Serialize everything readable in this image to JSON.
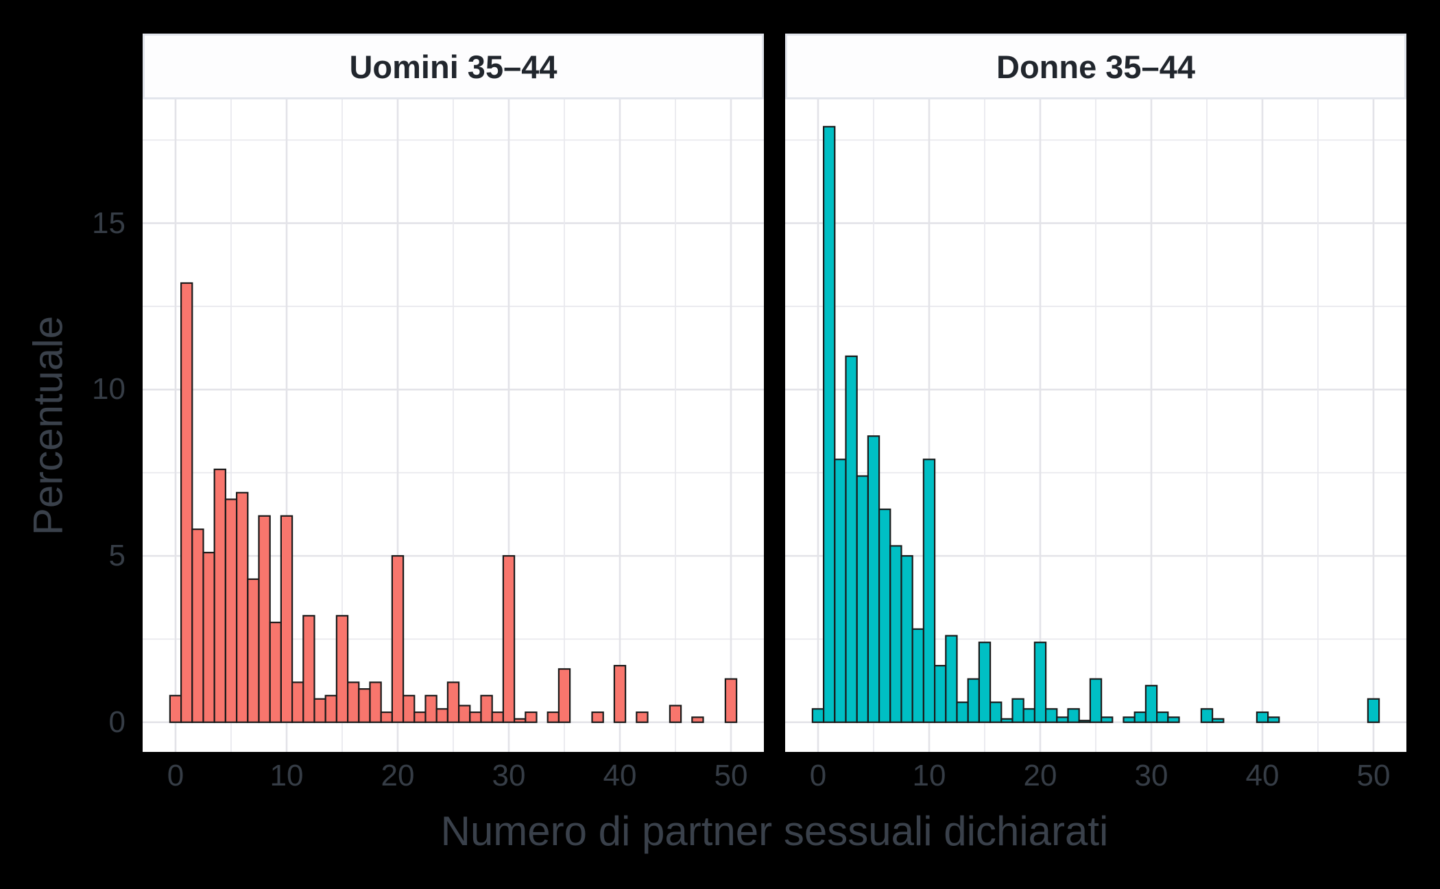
{
  "background_color": "#000000",
  "panel_background": "#FFFFFF",
  "gridline_color_major": "#E3E3E8",
  "gridline_color_minor": "#E9E9EE",
  "text_color": "#363D46",
  "x_axis": {
    "title": "Numero di partner sessuali dichiarati",
    "tick_values": [
      0,
      10,
      20,
      30,
      40,
      50
    ],
    "tick_labels": [
      "0",
      "10",
      "20",
      "30",
      "40",
      "50"
    ]
  },
  "y_axis": {
    "title": "Percentuale",
    "tick_values": [
      0,
      5,
      10,
      15
    ],
    "tick_labels": [
      "0",
      "5",
      "10",
      "15"
    ]
  },
  "chart_data": [
    {
      "type": "bar",
      "panel_title": "Uomini 35–44",
      "bar_color": "#F8766D",
      "bar_edge_color": "#1A1A1A",
      "x_start": 0,
      "binwidth": 1,
      "xlabel": "Numero di partner sessuali dichiarati",
      "ylabel": "Percentuale",
      "ylim": [
        0,
        18.8
      ],
      "xlim": [
        -3.1,
        54.1
      ],
      "values": [
        0.8,
        13.2,
        5.8,
        5.1,
        7.6,
        6.7,
        6.9,
        4.3,
        6.2,
        3.0,
        6.2,
        1.2,
        3.2,
        0.7,
        0.8,
        3.2,
        1.2,
        1.0,
        1.2,
        0.3,
        5.0,
        0.8,
        0.3,
        0.8,
        0.4,
        1.2,
        0.5,
        0.3,
        0.8,
        0.3,
        5.0,
        0.1,
        0.3,
        0,
        0.3,
        1.6,
        0,
        0,
        0.3,
        0,
        1.7,
        0,
        0.3,
        0,
        0,
        0.5,
        0,
        0.15,
        0,
        0,
        1.3,
        0
      ]
    },
    {
      "type": "bar",
      "panel_title": "Donne 35–44",
      "bar_color": "#00BFC4",
      "bar_edge_color": "#1A1A1A",
      "x_start": 0,
      "binwidth": 1,
      "xlabel": "Numero di partner sessuali dichiarati",
      "ylabel": "Percentuale",
      "ylim": [
        0,
        18.8
      ],
      "xlim": [
        -3.1,
        54.1
      ],
      "values": [
        0.4,
        17.9,
        7.9,
        11.0,
        7.4,
        8.6,
        6.4,
        5.3,
        5.0,
        2.8,
        7.9,
        1.7,
        2.6,
        0.6,
        1.3,
        2.4,
        0.6,
        0.1,
        0.7,
        0.4,
        2.4,
        0.4,
        0.15,
        0.4,
        0.05,
        1.3,
        0.15,
        0,
        0.15,
        0.3,
        1.1,
        0.3,
        0.15,
        0,
        0,
        0.4,
        0.1,
        0,
        0,
        0,
        0.3,
        0.15,
        0,
        0,
        0,
        0,
        0,
        0,
        0,
        0,
        0.7,
        0
      ]
    }
  ],
  "layout_hints": {
    "facets": 2,
    "legend": "none",
    "grid": {
      "x_major_step": 10,
      "x_minor_step": 5,
      "y_major_step": 5,
      "y_minor_step": 2.5
    }
  }
}
